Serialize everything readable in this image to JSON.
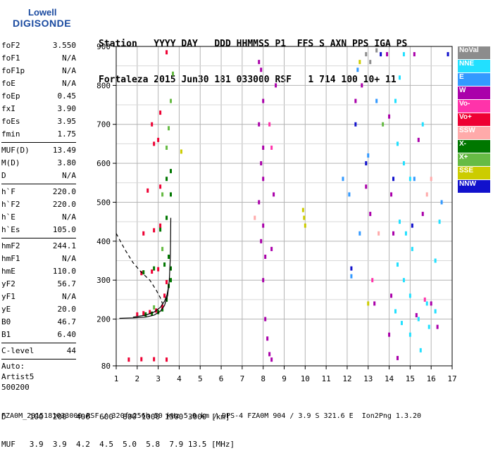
{
  "logo": {
    "line1": "Lowell",
    "line2": "DIGISONDE"
  },
  "header": {
    "labels": "Station   YYYY DAY   DDD HHMMSS P1  FFS S AXN PPS IGA PS",
    "values": "Fortaleza 2015 Jun30 181 033000 RSF   1 714 100 10+ 11"
  },
  "params": {
    "group1": [
      {
        "name": "foF2",
        "value": "3.550"
      },
      {
        "name": "foF1",
        "value": "N/A"
      },
      {
        "name": "foF1p",
        "value": "N/A"
      },
      {
        "name": "foE",
        "value": "N/A"
      },
      {
        "name": "foEp",
        "value": "0.45"
      },
      {
        "name": "fxI",
        "value": "3.90"
      },
      {
        "name": "foEs",
        "value": "3.95"
      },
      {
        "name": "fmin",
        "value": "1.75"
      }
    ],
    "group2": [
      {
        "name": "MUF(D)",
        "value": "13.49"
      },
      {
        "name": "M(D)",
        "value": "3.80"
      },
      {
        "name": "D",
        "value": "N/A"
      }
    ],
    "group3": [
      {
        "name": "h`F",
        "value": "220.0"
      },
      {
        "name": "h`F2",
        "value": "220.0"
      },
      {
        "name": "h`E",
        "value": "N/A"
      },
      {
        "name": "h`Es",
        "value": "105.0"
      }
    ],
    "group4": [
      {
        "name": "hmF2",
        "value": "244.1"
      },
      {
        "name": "hmF1",
        "value": "N/A"
      },
      {
        "name": "hmE",
        "value": "110.0"
      },
      {
        "name": "yF2",
        "value": "56.7"
      },
      {
        "name": "yF1",
        "value": "N/A"
      },
      {
        "name": "yE",
        "value": "20.0"
      },
      {
        "name": "B0",
        "value": "46.7"
      },
      {
        "name": "B1",
        "value": "6.40"
      }
    ],
    "clevel": {
      "name": "C-level",
      "value": "44"
    },
    "auto": [
      "Auto:",
      "Artist5",
      "500200"
    ]
  },
  "legend": [
    {
      "label": "NoVal",
      "color": "#8c8c8c"
    },
    {
      "label": "NNE",
      "color": "#22e0ff"
    },
    {
      "label": "E",
      "color": "#3399ff"
    },
    {
      "label": "W",
      "color": "#aa00aa"
    },
    {
      "label": "Vo-",
      "color": "#ff33aa"
    },
    {
      "label": "Vo+",
      "color": "#ee0033"
    },
    {
      "label": "SSW",
      "color": "#ffaaaa"
    },
    {
      "label": "X-",
      "color": "#007700"
    },
    {
      "label": "X+",
      "color": "#66bb44"
    },
    {
      "label": "SSE",
      "color": "#cccc00"
    },
    {
      "label": "NNW",
      "color": "#1111cc"
    }
  ],
  "footer": {
    "line1": "D     100  200  400  600  800 1000 1500 3000 [km]",
    "line2": "MUF   3.9  3.9  4.2  4.5  5.0  5.8  7.9 13.5 [MHz]",
    "line3": "FZA0M_2015181033000.RSF / 320fx256h 50 kHz 5.0 km / DPS-4 FZA0M 904 / 3.9 S 321.6 E  Ion2Png 1.3.20"
  },
  "chart_data": {
    "type": "scatter",
    "xlim": [
      1,
      17
    ],
    "ylim": [
      80,
      900
    ],
    "xticks": [
      1,
      2,
      3,
      4,
      5,
      6,
      7,
      8,
      9,
      10,
      11,
      12,
      13,
      14,
      15,
      16,
      17
    ],
    "yticks": [
      80,
      200,
      300,
      400,
      500,
      600,
      700,
      800,
      900
    ],
    "grid": true,
    "series": [
      {
        "name": "X-",
        "points": [
          [
            2.4,
            212
          ],
          [
            2.7,
            214
          ],
          [
            3.0,
            218
          ],
          [
            3.2,
            225
          ],
          [
            3.4,
            250
          ],
          [
            3.5,
            285
          ],
          [
            3.6,
            300
          ],
          [
            3.6,
            330
          ],
          [
            3.5,
            360
          ],
          [
            2.3,
            320
          ],
          [
            2.8,
            330
          ],
          [
            3.3,
            340
          ],
          [
            3.1,
            430
          ],
          [
            3.4,
            460
          ],
          [
            3.6,
            520
          ],
          [
            3.4,
            560
          ],
          [
            3.6,
            580
          ]
        ]
      },
      {
        "name": "Vo+",
        "points": [
          [
            2.0,
            212
          ],
          [
            2.3,
            215
          ],
          [
            2.6,
            218
          ],
          [
            2.9,
            222
          ],
          [
            3.2,
            232
          ],
          [
            3.3,
            260
          ],
          [
            3.4,
            295
          ],
          [
            2.2,
            318
          ],
          [
            2.7,
            322
          ],
          [
            3.0,
            328
          ],
          [
            2.3,
            420
          ],
          [
            2.8,
            428
          ],
          [
            3.1,
            440
          ],
          [
            2.5,
            530
          ],
          [
            3.1,
            540
          ],
          [
            2.8,
            650
          ],
          [
            3.0,
            660
          ],
          [
            2.7,
            700
          ],
          [
            3.1,
            730
          ],
          [
            3.4,
            885
          ],
          [
            1.6,
            96
          ],
          [
            2.2,
            97
          ],
          [
            2.8,
            97
          ],
          [
            3.4,
            96
          ]
        ]
      },
      {
        "name": "W",
        "points": [
          [
            7.8,
            860
          ],
          [
            7.9,
            840
          ],
          [
            8.0,
            760
          ],
          [
            7.8,
            700
          ],
          [
            8.0,
            640
          ],
          [
            7.9,
            600
          ],
          [
            8.0,
            560
          ],
          [
            7.8,
            500
          ],
          [
            8.0,
            440
          ],
          [
            7.9,
            400
          ],
          [
            8.1,
            360
          ],
          [
            8.0,
            300
          ],
          [
            8.1,
            200
          ],
          [
            8.2,
            150
          ],
          [
            8.3,
            110
          ],
          [
            8.4,
            96
          ],
          [
            8.6,
            800
          ],
          [
            8.5,
            520
          ],
          [
            8.4,
            380
          ],
          [
            12.4,
            760
          ],
          [
            12.7,
            800
          ],
          [
            12.9,
            540
          ],
          [
            13.1,
            470
          ],
          [
            13.3,
            240
          ],
          [
            13.9,
            880
          ],
          [
            14.0,
            720
          ],
          [
            14.1,
            520
          ],
          [
            14.2,
            420
          ],
          [
            14.1,
            260
          ],
          [
            14.0,
            160
          ],
          [
            14.4,
            100
          ],
          [
            15.2,
            880
          ],
          [
            15.4,
            660
          ],
          [
            15.6,
            470
          ],
          [
            15.3,
            210
          ],
          [
            16.0,
            240
          ],
          [
            16.3,
            180
          ]
        ]
      },
      {
        "name": "NNE",
        "points": [
          [
            14.3,
            760
          ],
          [
            14.5,
            820
          ],
          [
            14.7,
            880
          ],
          [
            14.4,
            650
          ],
          [
            14.7,
            600
          ],
          [
            15.0,
            560
          ],
          [
            14.5,
            450
          ],
          [
            14.8,
            420
          ],
          [
            15.1,
            380
          ],
          [
            14.4,
            340
          ],
          [
            14.7,
            300
          ],
          [
            15.0,
            260
          ],
          [
            14.3,
            220
          ],
          [
            14.6,
            190
          ],
          [
            15.0,
            160
          ],
          [
            15.4,
            200
          ],
          [
            15.8,
            240
          ],
          [
            16.2,
            220
          ],
          [
            15.9,
            180
          ],
          [
            15.5,
            120
          ],
          [
            16.2,
            350
          ],
          [
            16.4,
            450
          ],
          [
            15.6,
            700
          ]
        ]
      },
      {
        "name": "E",
        "points": [
          [
            11.8,
            560
          ],
          [
            12.1,
            520
          ],
          [
            12.5,
            840
          ],
          [
            12.6,
            420
          ],
          [
            13.0,
            620
          ],
          [
            13.4,
            760
          ],
          [
            15.2,
            560
          ],
          [
            16.5,
            500
          ],
          [
            12.2,
            310
          ]
        ]
      },
      {
        "name": "SSE",
        "points": [
          [
            9.9,
            480
          ],
          [
            9.95,
            460
          ],
          [
            10.0,
            440
          ],
          [
            12.6,
            860
          ],
          [
            13.0,
            240
          ],
          [
            4.1,
            630
          ]
        ]
      },
      {
        "name": "X+",
        "points": [
          [
            2.8,
            230
          ],
          [
            3.2,
            380
          ],
          [
            3.4,
            640
          ],
          [
            3.5,
            690
          ],
          [
            3.6,
            760
          ],
          [
            3.7,
            830
          ],
          [
            3.2,
            520
          ],
          [
            13.7,
            700
          ]
        ]
      },
      {
        "name": "NNW",
        "points": [
          [
            12.4,
            700
          ],
          [
            12.9,
            600
          ],
          [
            13.6,
            880
          ],
          [
            14.2,
            560
          ],
          [
            15.1,
            440
          ],
          [
            16.8,
            880
          ],
          [
            12.2,
            330
          ]
        ]
      },
      {
        "name": "Vo-",
        "points": [
          [
            8.3,
            700
          ],
          [
            8.4,
            640
          ],
          [
            13.2,
            300
          ],
          [
            15.7,
            250
          ]
        ]
      },
      {
        "name": "SSW",
        "points": [
          [
            15.8,
            520
          ],
          [
            16.0,
            560
          ],
          [
            13.5,
            420
          ],
          [
            7.6,
            460
          ]
        ]
      },
      {
        "name": "NoVal",
        "points": [
          [
            12.9,
            880
          ],
          [
            13.1,
            860
          ],
          [
            13.4,
            890
          ]
        ]
      }
    ],
    "traces": [
      {
        "name": "profile",
        "points": [
          [
            1.15,
            202
          ],
          [
            1.8,
            203
          ],
          [
            2.4,
            205
          ],
          [
            2.8,
            210
          ],
          [
            3.1,
            220
          ],
          [
            3.3,
            235
          ],
          [
            3.45,
            260
          ],
          [
            3.53,
            300
          ],
          [
            3.58,
            360
          ],
          [
            3.6,
            460
          ]
        ]
      },
      {
        "name": "virtual",
        "points": [
          [
            1.8,
            205
          ],
          [
            2.4,
            210
          ],
          [
            2.8,
            218
          ],
          [
            3.1,
            230
          ],
          [
            3.3,
            246
          ],
          [
            3.42,
            262
          ],
          [
            3.5,
            285
          ]
        ]
      },
      {
        "name": "dashed",
        "points": [
          [
            1.0,
            420
          ],
          [
            1.4,
            380
          ],
          [
            1.8,
            345
          ],
          [
            2.2,
            320
          ],
          [
            2.6,
            300
          ],
          [
            2.9,
            275
          ],
          [
            3.1,
            255
          ],
          [
            3.2,
            240
          ]
        ]
      }
    ]
  }
}
